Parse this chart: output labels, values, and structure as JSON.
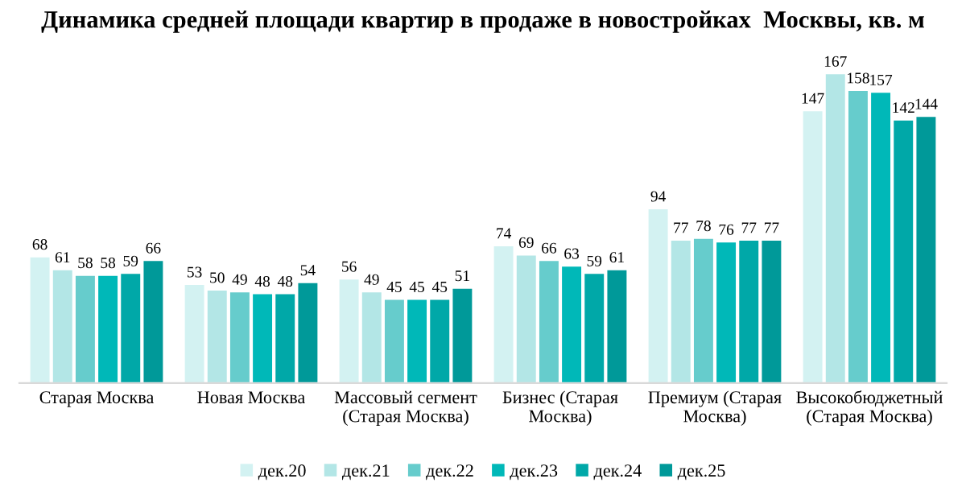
{
  "chart_data": {
    "type": "bar",
    "title": "Динамика средней площади квартир в продаже в новостройках  Москвы, кв. м",
    "categories": [
      "Старая Москва",
      "Новая Москва",
      "Массовый сегмент\n(Старая Москва)",
      "Бизнес (Старая\nМосква)",
      "Премиум (Старая\nМосква)",
      "Высокобюджетный\n(Старая Москва)"
    ],
    "series": [
      {
        "name": "дек.20",
        "color": "#d3f2f2",
        "values": [
          68,
          53,
          56,
          74,
          94,
          147
        ]
      },
      {
        "name": "дек.21",
        "color": "#b3e6e6",
        "values": [
          61,
          50,
          49,
          69,
          77,
          167
        ]
      },
      {
        "name": "дек.22",
        "color": "#66cccc",
        "values": [
          58,
          49,
          45,
          66,
          78,
          158
        ]
      },
      {
        "name": "дек.23",
        "color": "#00b8b8",
        "values": [
          58,
          48,
          45,
          63,
          76,
          157
        ]
      },
      {
        "name": "дек.24",
        "color": "#00a8a8",
        "values": [
          59,
          48,
          45,
          59,
          77,
          142
        ]
      },
      {
        "name": "дек.25",
        "color": "#009999",
        "values": [
          66,
          54,
          51,
          61,
          77,
          144
        ]
      }
    ],
    "data_labels": true,
    "legend": "bottom"
  }
}
